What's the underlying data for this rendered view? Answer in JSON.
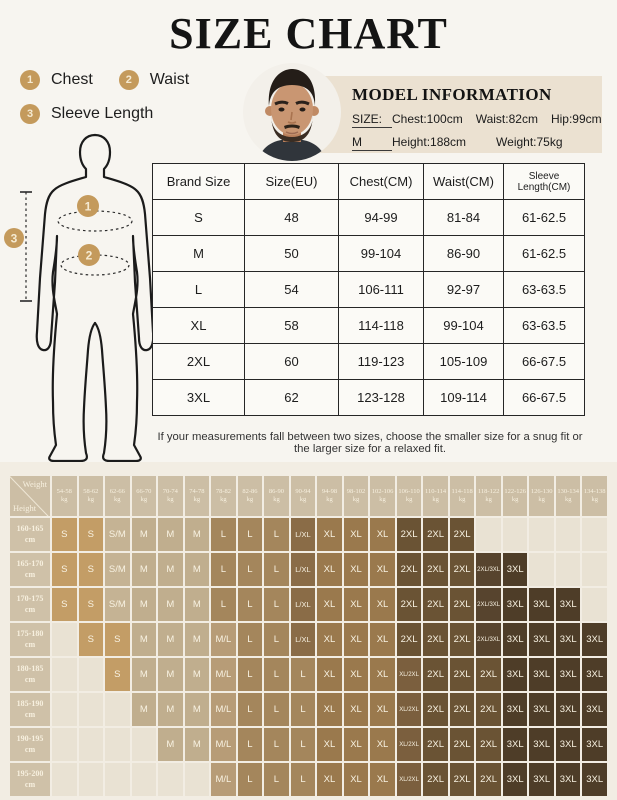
{
  "title": "SIZE CHART",
  "legend": {
    "items": [
      {
        "num": "1",
        "label": "Chest"
      },
      {
        "num": "2",
        "label": "Waist"
      },
      {
        "num": "3",
        "label": "Sleeve Length"
      }
    ]
  },
  "figure": {
    "markers": [
      "1",
      "2",
      "3"
    ]
  },
  "model": {
    "heading": "MODEL INFORMATION",
    "size_label": "SIZE:",
    "size_value": "M",
    "row1": [
      "Chest:100cm",
      "Waist:82cm",
      "Hip:99cm"
    ],
    "row2": [
      "Height:188cm",
      "Weight:75kg"
    ]
  },
  "size_table": {
    "headers": [
      "Brand Size",
      "Size(EU)",
      "Chest(CM)",
      "Waist(CM)",
      "Sleeve Length(CM)"
    ],
    "rows": [
      [
        "S",
        "48",
        "94-99",
        "81-84",
        "61-62.5"
      ],
      [
        "M",
        "50",
        "99-104",
        "86-90",
        "61-62.5"
      ],
      [
        "L",
        "54",
        "106-111",
        "92-97",
        "63-63.5"
      ],
      [
        "XL",
        "58",
        "114-118",
        "99-104",
        "63-63.5"
      ],
      [
        "2XL",
        "60",
        "119-123",
        "105-109",
        "66-67.5"
      ],
      [
        "3XL",
        "62",
        "123-128",
        "109-114",
        "66-67.5"
      ]
    ]
  },
  "note": "If your measurements fall between two sizes, choose the smaller size for a snug fit or the larger size for a relaxed fit.",
  "matrix": {
    "corner": {
      "top": "Weight",
      "bottom": "Height"
    },
    "weight_unit": "kg",
    "height_unit": "cm",
    "weights": [
      "54-58",
      "58-62",
      "62-66",
      "66-70",
      "70-74",
      "74-78",
      "78-82",
      "82-86",
      "86-90",
      "90-94",
      "94-98",
      "98-102",
      "102-106",
      "106-110",
      "110-114",
      "114-118",
      "118-122",
      "122-126",
      "126-130",
      "130-134",
      "134-138"
    ],
    "rows": [
      {
        "height": "160-165",
        "cells": [
          "S",
          "S",
          "S/M",
          "M",
          "M",
          "M",
          "L",
          "L",
          "L",
          "L/XL",
          "XL",
          "XL",
          "XL",
          "2XL",
          "2XL",
          "2XL",
          "",
          "",
          "",
          "",
          ""
        ]
      },
      {
        "height": "165-170",
        "cells": [
          "S",
          "S",
          "S/M",
          "M",
          "M",
          "M",
          "L",
          "L",
          "L",
          "L/XL",
          "XL",
          "XL",
          "XL",
          "2XL",
          "2XL",
          "2XL",
          "2XL/3XL",
          "3XL",
          "",
          "",
          ""
        ]
      },
      {
        "height": "170-175",
        "cells": [
          "S",
          "S",
          "S/M",
          "M",
          "M",
          "M",
          "L",
          "L",
          "L",
          "L/XL",
          "XL",
          "XL",
          "XL",
          "2XL",
          "2XL",
          "2XL",
          "2XL/3XL",
          "3XL",
          "3XL",
          "3XL",
          ""
        ]
      },
      {
        "height": "175-180",
        "cells": [
          "",
          "S",
          "S",
          "M",
          "M",
          "M",
          "M/L",
          "L",
          "L",
          "L/XL",
          "XL",
          "XL",
          "XL",
          "2XL",
          "2XL",
          "2XL",
          "2XL/3XL",
          "3XL",
          "3XL",
          "3XL",
          "3XL"
        ]
      },
      {
        "height": "180-185",
        "cells": [
          "",
          "",
          "S",
          "M",
          "M",
          "M",
          "M/L",
          "L",
          "L",
          "L",
          "XL",
          "XL",
          "XL",
          "XL/2XL",
          "2XL",
          "2XL",
          "2XL",
          "3XL",
          "3XL",
          "3XL",
          "3XL"
        ]
      },
      {
        "height": "185-190",
        "cells": [
          "",
          "",
          "",
          "M",
          "M",
          "M",
          "M/L",
          "L",
          "L",
          "L",
          "XL",
          "XL",
          "XL",
          "XL/2XL",
          "2XL",
          "2XL",
          "2XL",
          "3XL",
          "3XL",
          "3XL",
          "3XL"
        ]
      },
      {
        "height": "190-195",
        "cells": [
          "",
          "",
          "",
          "",
          "M",
          "M",
          "M/L",
          "L",
          "L",
          "L",
          "XL",
          "XL",
          "XL",
          "XL/2XL",
          "2XL",
          "2XL",
          "2XL",
          "3XL",
          "3XL",
          "3XL",
          "3XL"
        ]
      },
      {
        "height": "195-200",
        "cells": [
          "",
          "",
          "",
          "",
          "",
          "",
          "M/L",
          "L",
          "L",
          "L",
          "XL",
          "XL",
          "XL",
          "XL/2XL",
          "2XL",
          "2XL",
          "2XL",
          "3XL",
          "3XL",
          "3XL",
          "3XL"
        ]
      }
    ],
    "colors": {
      "S": "#c39d66",
      "S/M": "#c5b394",
      "M": "#c0ae8e",
      "M/L": "#b79c77",
      "L": "#a4865c",
      "L/XL": "#8a6c47",
      "XL": "#9a794d",
      "XL/2XL": "#7b5f3e",
      "2XL": "#6a5334",
      "2XL/3XL": "#57442e",
      "3XL": "#4e3d28",
      "empty": "#e9e2d3"
    }
  }
}
